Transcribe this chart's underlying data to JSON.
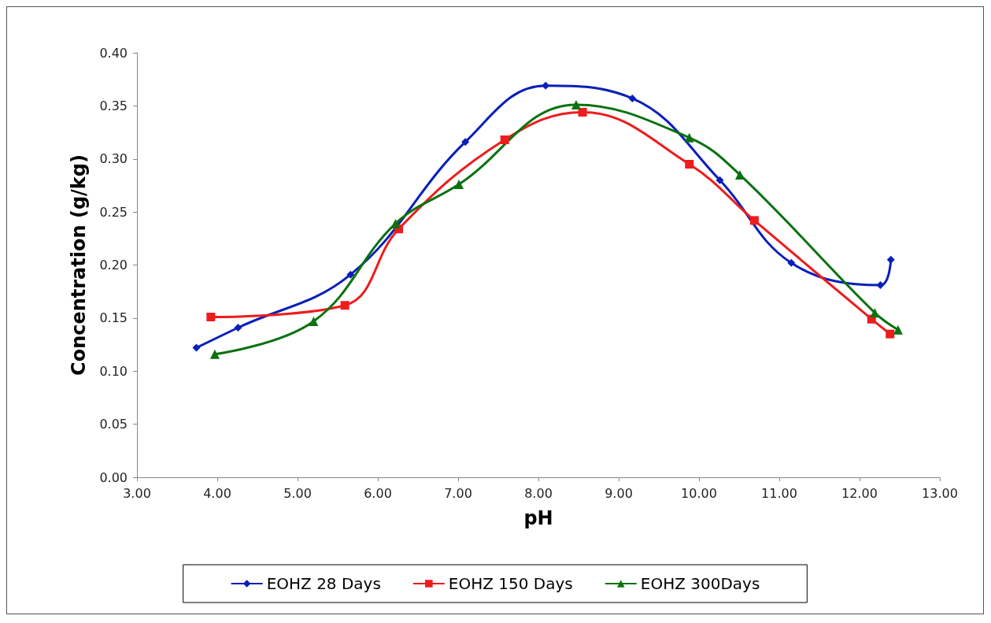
{
  "chart_data": {
    "type": "line",
    "xlabel": "pH",
    "ylabel": "Concentration (g/kg)",
    "xlim": [
      3,
      13
    ],
    "xticks": [
      {
        "value": 3,
        "label": "3.00"
      },
      {
        "value": 4,
        "label": "4.00"
      },
      {
        "value": 5,
        "label": "5.00"
      },
      {
        "value": 6,
        "label": "6.00"
      },
      {
        "value": 7,
        "label": "7.00"
      },
      {
        "value": 8,
        "label": "8.00"
      },
      {
        "value": 9,
        "label": "9.00"
      },
      {
        "value": 10,
        "label": "10.00"
      },
      {
        "value": 11,
        "label": "11.00"
      },
      {
        "value": 12,
        "label": "12.00"
      },
      {
        "value": 13,
        "label": "13.00"
      }
    ],
    "ylim": [
      0,
      0.4
    ],
    "yticks": [
      {
        "value": 0,
        "label": "0.00"
      },
      {
        "value": 0.05,
        "label": "0.05"
      },
      {
        "value": 0.1,
        "label": "0.10"
      },
      {
        "value": 0.15,
        "label": "0.15"
      },
      {
        "value": 0.2,
        "label": "0.20"
      },
      {
        "value": 0.25,
        "label": "0.25"
      },
      {
        "value": 0.3,
        "label": "0.30"
      },
      {
        "value": 0.35,
        "label": "0.35"
      },
      {
        "value": 0.4,
        "label": "0.40"
      }
    ],
    "grid": false,
    "legend": "bottom",
    "series": [
      {
        "name": "EOHZ 28 Days",
        "color": "#0a1fb8",
        "marker": "diamond",
        "x": [
          3.74,
          4.26,
          5.66,
          7.09,
          8.09,
          9.17,
          10.26,
          11.15,
          12.26,
          12.39
        ],
        "values": [
          0.122,
          0.141,
          0.191,
          0.316,
          0.369,
          0.357,
          0.28,
          0.202,
          0.181,
          0.205
        ]
      },
      {
        "name": "EOHZ 150 Days",
        "color": "#ee1c1c",
        "marker": "square",
        "x": [
          3.92,
          5.59,
          6.26,
          7.58,
          8.55,
          9.88,
          10.69,
          12.15,
          12.38
        ],
        "values": [
          0.151,
          0.162,
          0.234,
          0.318,
          0.344,
          0.295,
          0.242,
          0.149,
          0.135
        ]
      },
      {
        "name": "EOHZ 300Days",
        "color": "#0b7210",
        "marker": "triangle",
        "x": [
          3.97,
          5.2,
          6.22,
          7.01,
          8.47,
          9.88,
          10.51,
          12.19,
          12.48
        ],
        "values": [
          0.116,
          0.147,
          0.239,
          0.276,
          0.351,
          0.32,
          0.285,
          0.155,
          0.139
        ]
      }
    ]
  }
}
